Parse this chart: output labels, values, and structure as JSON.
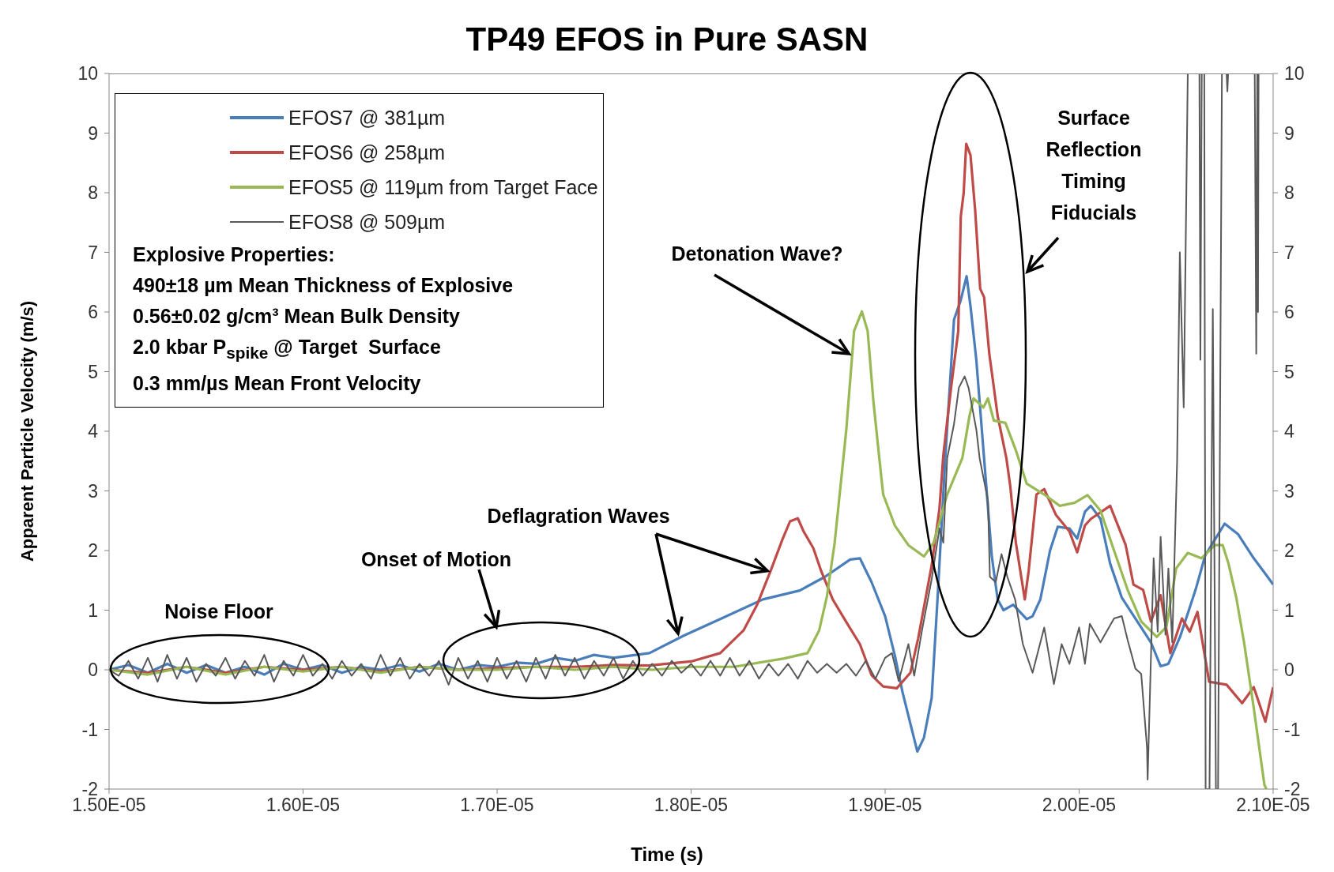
{
  "chart_data": {
    "type": "line",
    "title": "TP49 EFOS in Pure SASN",
    "xlabel": "Time (s)",
    "ylabel": "Apparent Particle Velocity (m/s)",
    "xlim": [
      1.5e-05,
      2.1e-05
    ],
    "xticks": [
      {
        "value": 1.5e-05,
        "label": "1.50E-05"
      },
      {
        "value": 1.6e-05,
        "label": "1.60E-05"
      },
      {
        "value": 1.7e-05,
        "label": "1.70E-05"
      },
      {
        "value": 1.8e-05,
        "label": "1.80E-05"
      },
      {
        "value": 1.9e-05,
        "label": "1.90E-05"
      },
      {
        "value": 2e-05,
        "label": "2.00E-05"
      },
      {
        "value": 2.1e-05,
        "label": "2.10E-05"
      }
    ],
    "ylim": [
      -2,
      10
    ],
    "yticks": [
      -2,
      -1,
      0,
      1,
      2,
      3,
      4,
      5,
      6,
      7,
      8,
      9,
      10
    ],
    "y2lim": [
      -2,
      10
    ],
    "y2ticks": [
      -2,
      -1,
      0,
      1,
      2,
      3,
      4,
      5,
      6,
      7,
      8,
      9,
      10
    ],
    "legend": "top left",
    "annotations": [
      "Explosive Properties:",
      "490±18 µm Mean Thickness of Explosive",
      "0.56±0.02 g/cm³ Mean Bulk Density",
      "2.0 kbar P$_{spike}$ @ Target  Surface",
      "0.3 mm/µs Mean Front Velocity",
      "Noise Floor",
      "Onset of Motion",
      {
        "text": "Deflagration Waves",
        "x": 1.841e-05,
        "y": 1.66
      },
      {
        "text": "Detonation Wave?",
        "x": 1.883e-05,
        "y": 5.3
      },
      "Surface Reflection Timing Fiducials"
    ],
    "series": [
      {
        "name": "EFOS7 @ 381µm",
        "color": "#4a7ebb",
        "x": [
          1.5e-05,
          1.51e-05,
          1.52e-05,
          1.53e-05,
          1.54e-05,
          1.55e-05,
          1.56e-05,
          1.57e-05,
          1.58e-05,
          1.59e-05,
          1.6e-05,
          1.61e-05,
          1.62e-05,
          1.63e-05,
          1.64e-05,
          1.65e-05,
          1.66e-05,
          1.67e-05,
          1.68e-05,
          1.69e-05,
          1.7e-05,
          1.71e-05,
          1.72e-05,
          1.73e-05,
          1.74e-05,
          1.75e-05,
          1.76e-05,
          1.7785e-05,
          1.796e-05,
          1.815e-05,
          1.837e-05,
          1.856e-05,
          1.869e-05,
          1.882e-05,
          1.887e-05,
          1.893e-05,
          1.9e-05,
          1.905e-05,
          1.909e-05,
          1.9166e-05,
          1.92e-05,
          1.924e-05,
          1.927e-05,
          1.931e-05,
          1.9355e-05,
          1.939e-05,
          1.942e-05,
          1.944e-05,
          1.947e-05,
          1.951e-05,
          1.955e-05,
          1.958e-05,
          1.961e-05,
          1.966e-05,
          1.973e-05,
          1.976e-05,
          1.98e-05,
          1.985e-05,
          1.989e-05,
          1.995e-05,
          1.999e-05,
          2.003e-05,
          2.006e-05,
          2.011e-05,
          2.016e-05,
          2.022e-05,
          2.03e-05,
          2.037e-05,
          2.042e-05,
          2.046e-05,
          2.052e-05,
          2.06e-05,
          2.065e-05,
          2.075e-05,
          2.082e-05,
          2.09e-05,
          2.096e-05,
          2.1e-05
        ],
        "values": [
          0,
          0.08,
          -0.05,
          0.1,
          -0.05,
          0.08,
          -0.05,
          0.05,
          -0.08,
          0.1,
          0,
          0.08,
          -0.05,
          0.05,
          0,
          0.08,
          -0.03,
          0.1,
          0,
          0.08,
          0.05,
          0.12,
          0.1,
          0.2,
          0.15,
          0.25,
          0.2,
          0.28,
          0.57,
          0.85,
          1.18,
          1.33,
          1.56,
          1.85,
          1.87,
          1.47,
          0.9,
          0.24,
          -0.38,
          -1.37,
          -1.14,
          -0.47,
          1.18,
          3.55,
          5.87,
          6.2,
          6.6,
          6.1,
          5.2,
          3.55,
          1.9,
          1.18,
          1.0,
          1.09,
          0.85,
          0.9,
          1.18,
          2.0,
          2.4,
          2.37,
          2.2,
          2.65,
          2.75,
          2.53,
          1.78,
          1.21,
          0.81,
          0.46,
          0.06,
          0.1,
          0.55,
          1.34,
          1.92,
          2.45,
          2.27,
          1.87,
          1.61,
          1.43
        ]
      },
      {
        "name": "EFOS6 @ 258µm",
        "color": "#be4b48",
        "x": [
          1.5e-05,
          1.52e-05,
          1.54e-05,
          1.56e-05,
          1.58e-05,
          1.6e-05,
          1.62e-05,
          1.64e-05,
          1.66e-05,
          1.68e-05,
          1.7e-05,
          1.72e-05,
          1.74e-05,
          1.76e-05,
          1.778e-05,
          1.8e-05,
          1.815e-05,
          1.827e-05,
          1.834e-05,
          1.841e-05,
          1.847e-05,
          1.851e-05,
          1.855e-05,
          1.858e-05,
          1.863e-05,
          1.867e-05,
          1.873e-05,
          1.88e-05,
          1.887e-05,
          1.893e-05,
          1.899e-05,
          1.906e-05,
          1.913e-05,
          1.917e-05,
          1.924e-05,
          1.928e-05,
          1.93e-05,
          1.934e-05,
          1.9377e-05,
          1.939e-05,
          1.9405e-05,
          1.9418e-05,
          1.944e-05,
          1.9464e-05,
          1.949e-05,
          1.951e-05,
          1.9537e-05,
          1.958e-05,
          1.9625e-05,
          1.9645e-05,
          1.9674e-05,
          1.972e-05,
          1.974e-05,
          1.978e-05,
          1.982e-05,
          1.988e-05,
          1.995e-05,
          1.999e-05,
          2.003e-05,
          2.006e-05,
          2.016e-05,
          2.024e-05,
          2.028e-05,
          2.033e-05,
          2.037e-05,
          2.042e-05,
          2.047e-05,
          2.053e-05,
          2.057e-05,
          2.061e-05,
          2.067e-05,
          2.076e-05,
          2.084e-05,
          2.09e-05,
          2.096e-05,
          2.1e-05
        ],
        "values": [
          0,
          -0.05,
          0.05,
          -0.05,
          0.05,
          0,
          0.05,
          -0.03,
          0.05,
          0,
          0.03,
          0.05,
          0.05,
          0.08,
          0.07,
          0.14,
          0.28,
          0.66,
          1.09,
          1.66,
          2.18,
          2.49,
          2.54,
          2.32,
          2.04,
          1.66,
          1.18,
          0.8,
          0.43,
          -0.09,
          -0.28,
          -0.31,
          -0.05,
          0.52,
          1.75,
          2.7,
          3.6,
          4.73,
          5.68,
          7.6,
          8.0,
          8.82,
          8.63,
          7.71,
          6.39,
          6.25,
          5.3,
          4.26,
          3.55,
          3.08,
          2.13,
          1.18,
          1.66,
          2.94,
          3.03,
          2.6,
          2.32,
          1.97,
          2.42,
          2.53,
          2.75,
          2.09,
          1.43,
          1.34,
          0.81,
          1.25,
          0.28,
          0.86,
          0.64,
          0.97,
          -0.2,
          -0.25,
          -0.56,
          -0.29,
          -0.87,
          -0.29
        ]
      },
      {
        "name": "EFOS5 @ 119µm from Target Face",
        "color": "#98b954",
        "x": [
          1.5e-05,
          1.52e-05,
          1.54e-05,
          1.56e-05,
          1.58e-05,
          1.6e-05,
          1.62e-05,
          1.64e-05,
          1.66e-05,
          1.68e-05,
          1.7e-05,
          1.72e-05,
          1.74e-05,
          1.76e-05,
          1.78e-05,
          1.8e-05,
          1.822e-05,
          1.848e-05,
          1.86e-05,
          1.866e-05,
          1.87e-05,
          1.874e-05,
          1.8785e-05,
          1.88e-05,
          1.884e-05,
          1.888e-05,
          1.891e-05,
          1.894e-05,
          1.897e-05,
          1.899e-05,
          1.905e-05,
          1.912e-05,
          1.92e-05,
          1.925e-05,
          1.932e-05,
          1.9398e-05,
          1.9435e-05,
          1.9456e-05,
          1.9507e-05,
          1.953e-05,
          1.956e-05,
          1.962e-05,
          1.9675e-05,
          1.973e-05,
          1.982e-05,
          1.99e-05,
          1.9976e-05,
          2.0043e-05,
          2.011e-05,
          2.018e-05,
          2.025e-05,
          2.032e-05,
          2.04e-05,
          2.045e-05,
          2.05e-05,
          2.056e-05,
          2.063e-05,
          2.07e-05,
          2.074e-05,
          2.077e-05,
          2.081e-05,
          2.085e-05,
          2.09e-05,
          2.0955e-05,
          2.0965e-05
        ],
        "values": [
          0,
          -0.08,
          0.05,
          -0.08,
          0.05,
          -0.03,
          0.05,
          -0.05,
          0.05,
          0,
          0,
          0.05,
          0,
          0.05,
          0,
          0.05,
          0.05,
          0.19,
          0.28,
          0.66,
          1.23,
          2.13,
          3.55,
          4.03,
          5.68,
          6.01,
          5.68,
          4.49,
          3.55,
          2.94,
          2.42,
          2.09,
          1.9,
          2.13,
          2.94,
          3.55,
          4.26,
          4.55,
          4.4,
          4.55,
          4.18,
          4.14,
          3.67,
          3.12,
          2.94,
          2.75,
          2.8,
          2.93,
          2.67,
          2.0,
          1.34,
          0.81,
          0.55,
          0.72,
          1.7,
          1.96,
          1.87,
          2.09,
          2.09,
          1.78,
          1.21,
          0.46,
          -0.64,
          -1.93,
          -2
        ]
      },
      {
        "name": "EFOS8 @ 509µm",
        "color": "#595959",
        "x": [
          1.5e-05,
          1.505e-05,
          1.51e-05,
          1.515e-05,
          1.52e-05,
          1.525e-05,
          1.53e-05,
          1.535e-05,
          1.54e-05,
          1.545e-05,
          1.55e-05,
          1.555e-05,
          1.56e-05,
          1.565e-05,
          1.57e-05,
          1.575e-05,
          1.58e-05,
          1.585e-05,
          1.59e-05,
          1.595e-05,
          1.6e-05,
          1.605e-05,
          1.61e-05,
          1.615e-05,
          1.62e-05,
          1.625e-05,
          1.63e-05,
          1.635e-05,
          1.64e-05,
          1.645e-05,
          1.65e-05,
          1.655e-05,
          1.66e-05,
          1.665e-05,
          1.67e-05,
          1.675e-05,
          1.68e-05,
          1.685e-05,
          1.69e-05,
          1.695e-05,
          1.7e-05,
          1.705e-05,
          1.71e-05,
          1.715e-05,
          1.72e-05,
          1.725e-05,
          1.73e-05,
          1.735e-05,
          1.74e-05,
          1.745e-05,
          1.75e-05,
          1.755e-05,
          1.76e-05,
          1.765e-05,
          1.77e-05,
          1.775e-05,
          1.78e-05,
          1.785e-05,
          1.79e-05,
          1.795e-05,
          1.8e-05,
          1.805e-05,
          1.81e-05,
          1.815e-05,
          1.82e-05,
          1.825e-05,
          1.83e-05,
          1.835e-05,
          1.84e-05,
          1.845e-05,
          1.85e-05,
          1.855e-05,
          1.86e-05,
          1.865e-05,
          1.87e-05,
          1.875e-05,
          1.88e-05,
          1.885e-05,
          1.89e-05,
          1.895e-05,
          1.9e-05,
          1.9035e-05,
          1.907e-05,
          1.912e-05,
          1.915e-05,
          1.919e-05,
          1.924e-05,
          1.928e-05,
          1.93e-05,
          1.932e-05,
          1.9355e-05,
          1.938e-05,
          1.941e-05,
          1.943e-05,
          1.947e-05,
          1.9487e-05,
          1.953e-05,
          1.954e-05,
          1.957e-05,
          1.96e-05,
          1.963e-05,
          1.967e-05,
          1.971e-05,
          1.976e-05,
          1.982e-05,
          1.987e-05,
          1.991e-05,
          1.995e-05,
          2e-05,
          2.003e-05,
          2.0055e-05,
          2.011e-05,
          2.018e-05,
          2.022e-05,
          2.025e-05,
          2.029e-05,
          2.032e-05,
          2.035e-05,
          2.0353e-05,
          2.0384e-05,
          2.0405e-05,
          2.042e-05,
          2.0445e-05,
          2.046e-05,
          2.048e-05,
          2.0505e-05,
          2.0519e-05,
          2.0539e-05,
          2.056e-05,
          2.062e-05,
          2.0625e-05,
          2.0632e-05,
          2.0645e-05,
          2.0652e-05,
          2.0672e-05,
          2.0689e-05,
          2.0705e-05,
          2.0716e-05,
          2.0736e-05,
          2.076e-05,
          2.0764e-05,
          2.0768e-05,
          2.0905e-05,
          2.0913e-05,
          2.0918e-05,
          2.0922e-05,
          2.0925e-05
        ],
        "values": [
          0,
          -0.1,
          0.15,
          -0.15,
          0.2,
          -0.2,
          0.25,
          -0.15,
          0.2,
          -0.2,
          0.1,
          -0.1,
          0.2,
          -0.15,
          0.15,
          -0.1,
          0.25,
          -0.2,
          0.15,
          -0.1,
          0.25,
          -0.1,
          0.1,
          -0.15,
          0.15,
          -0.1,
          0.1,
          -0.15,
          0.25,
          -0.1,
          0.2,
          -0.15,
          0.1,
          -0.1,
          0.15,
          -0.25,
          0.2,
          -0.15,
          0.15,
          -0.2,
          0.2,
          -0.15,
          0.15,
          -0.2,
          0.2,
          -0.15,
          0.25,
          -0.1,
          0.2,
          -0.15,
          0.15,
          -0.1,
          0.2,
          -0.15,
          0.15,
          -0.1,
          0.1,
          -0.1,
          0.15,
          -0.05,
          0.1,
          -0.1,
          0.15,
          -0.1,
          0.2,
          -0.1,
          0.15,
          -0.15,
          0.1,
          -0.1,
          0.1,
          -0.15,
          0.15,
          -0.05,
          0.1,
          -0.05,
          0.1,
          -0.1,
          0.15,
          -0.15,
          0.2,
          0.28,
          -0.19,
          0.43,
          -0.1,
          0.66,
          1.52,
          2.37,
          2.13,
          3.55,
          4.12,
          4.73,
          4.92,
          4.73,
          4.03,
          3.55,
          2.84,
          1.56,
          1.47,
          1.94,
          1.56,
          1.18,
          0.43,
          -0.05,
          0.71,
          -0.24,
          0.43,
          0.1,
          0.71,
          0.1,
          0.77,
          0.46,
          0.86,
          0.9,
          0.5,
          0.02,
          -0.07,
          -1.31,
          -1.84,
          1.87,
          0.64,
          2.23,
          0.59,
          1.7,
          0.46,
          3.5,
          7.0,
          4.4,
          10,
          10,
          5.2,
          10,
          10,
          -2,
          -2,
          6.05,
          -2,
          -2,
          10,
          10,
          9.7,
          10,
          10,
          5.3,
          10,
          6.0,
          10
        ]
      }
    ]
  }
}
